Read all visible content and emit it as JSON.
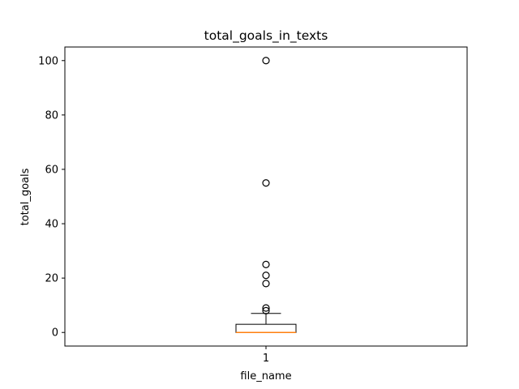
{
  "chart_data": {
    "type": "box",
    "title": "total_goals_in_texts",
    "xlabel": "file_name",
    "ylabel": "total_goals",
    "categories": [
      "1"
    ],
    "ylim": [
      -5,
      105
    ],
    "yticks": [
      0,
      20,
      40,
      60,
      80,
      100
    ],
    "grid": false,
    "series": [
      {
        "stats": {
          "whisker_low": 0,
          "q1": 0,
          "median": 0,
          "q3": 3,
          "whisker_high": 7
        },
        "outliers": [
          8,
          9,
          18,
          21,
          25,
          55,
          100
        ]
      }
    ],
    "colors": {
      "box": "#000000",
      "median": "#ff7f0e",
      "outlier_edge": "#000000"
    }
  }
}
